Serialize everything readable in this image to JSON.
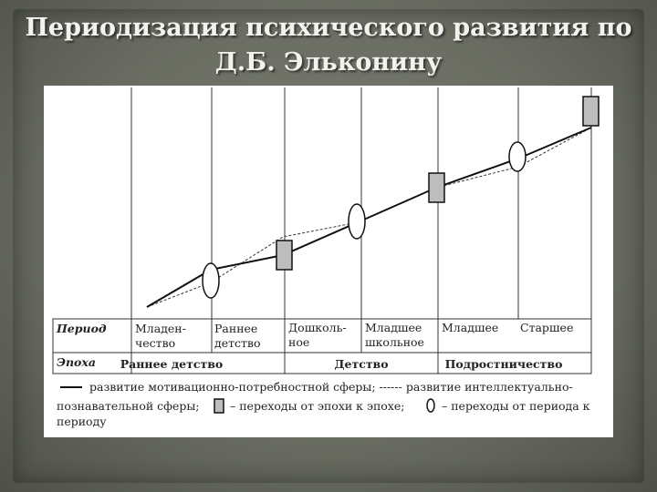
{
  "slide": {
    "title_line1": "Периодизация психического развития по",
    "title_line2": "Д.Б. Эльконину"
  },
  "table": {
    "period_header": "Период",
    "epoch_header": "Эпоха",
    "periods": [
      {
        "line1": "Младен-",
        "line2": "чество"
      },
      {
        "line1": "Раннее",
        "line2": "детство"
      },
      {
        "line1": "Дошколь-",
        "line2": "ное"
      },
      {
        "line1": "Младшее",
        "line2": "школьное"
      },
      {
        "line1": "Младшее",
        "line2": ""
      },
      {
        "line1": "Старшее",
        "line2": ""
      }
    ],
    "epochs": [
      "Раннее детство",
      "Детство",
      "Подростничество"
    ]
  },
  "legend": {
    "line1": "развитие мотивационно-потребностной сферы; ------ развитие интеллектуально-",
    "line2a": "познавательной сферы;",
    "line2b": "– переходы от эпохи к эпохе;",
    "line2c": "– переходы от периода к",
    "line3": "периоду"
  },
  "colors": {
    "panel": "#ffffff",
    "ink": "#222222",
    "epoch_marker_fill": "#bdbdbd",
    "slide_background": "#6e7166"
  },
  "icons": {
    "epoch_transition": "gray-rectangle-marker",
    "period_transition": "ellipse-marker"
  }
}
